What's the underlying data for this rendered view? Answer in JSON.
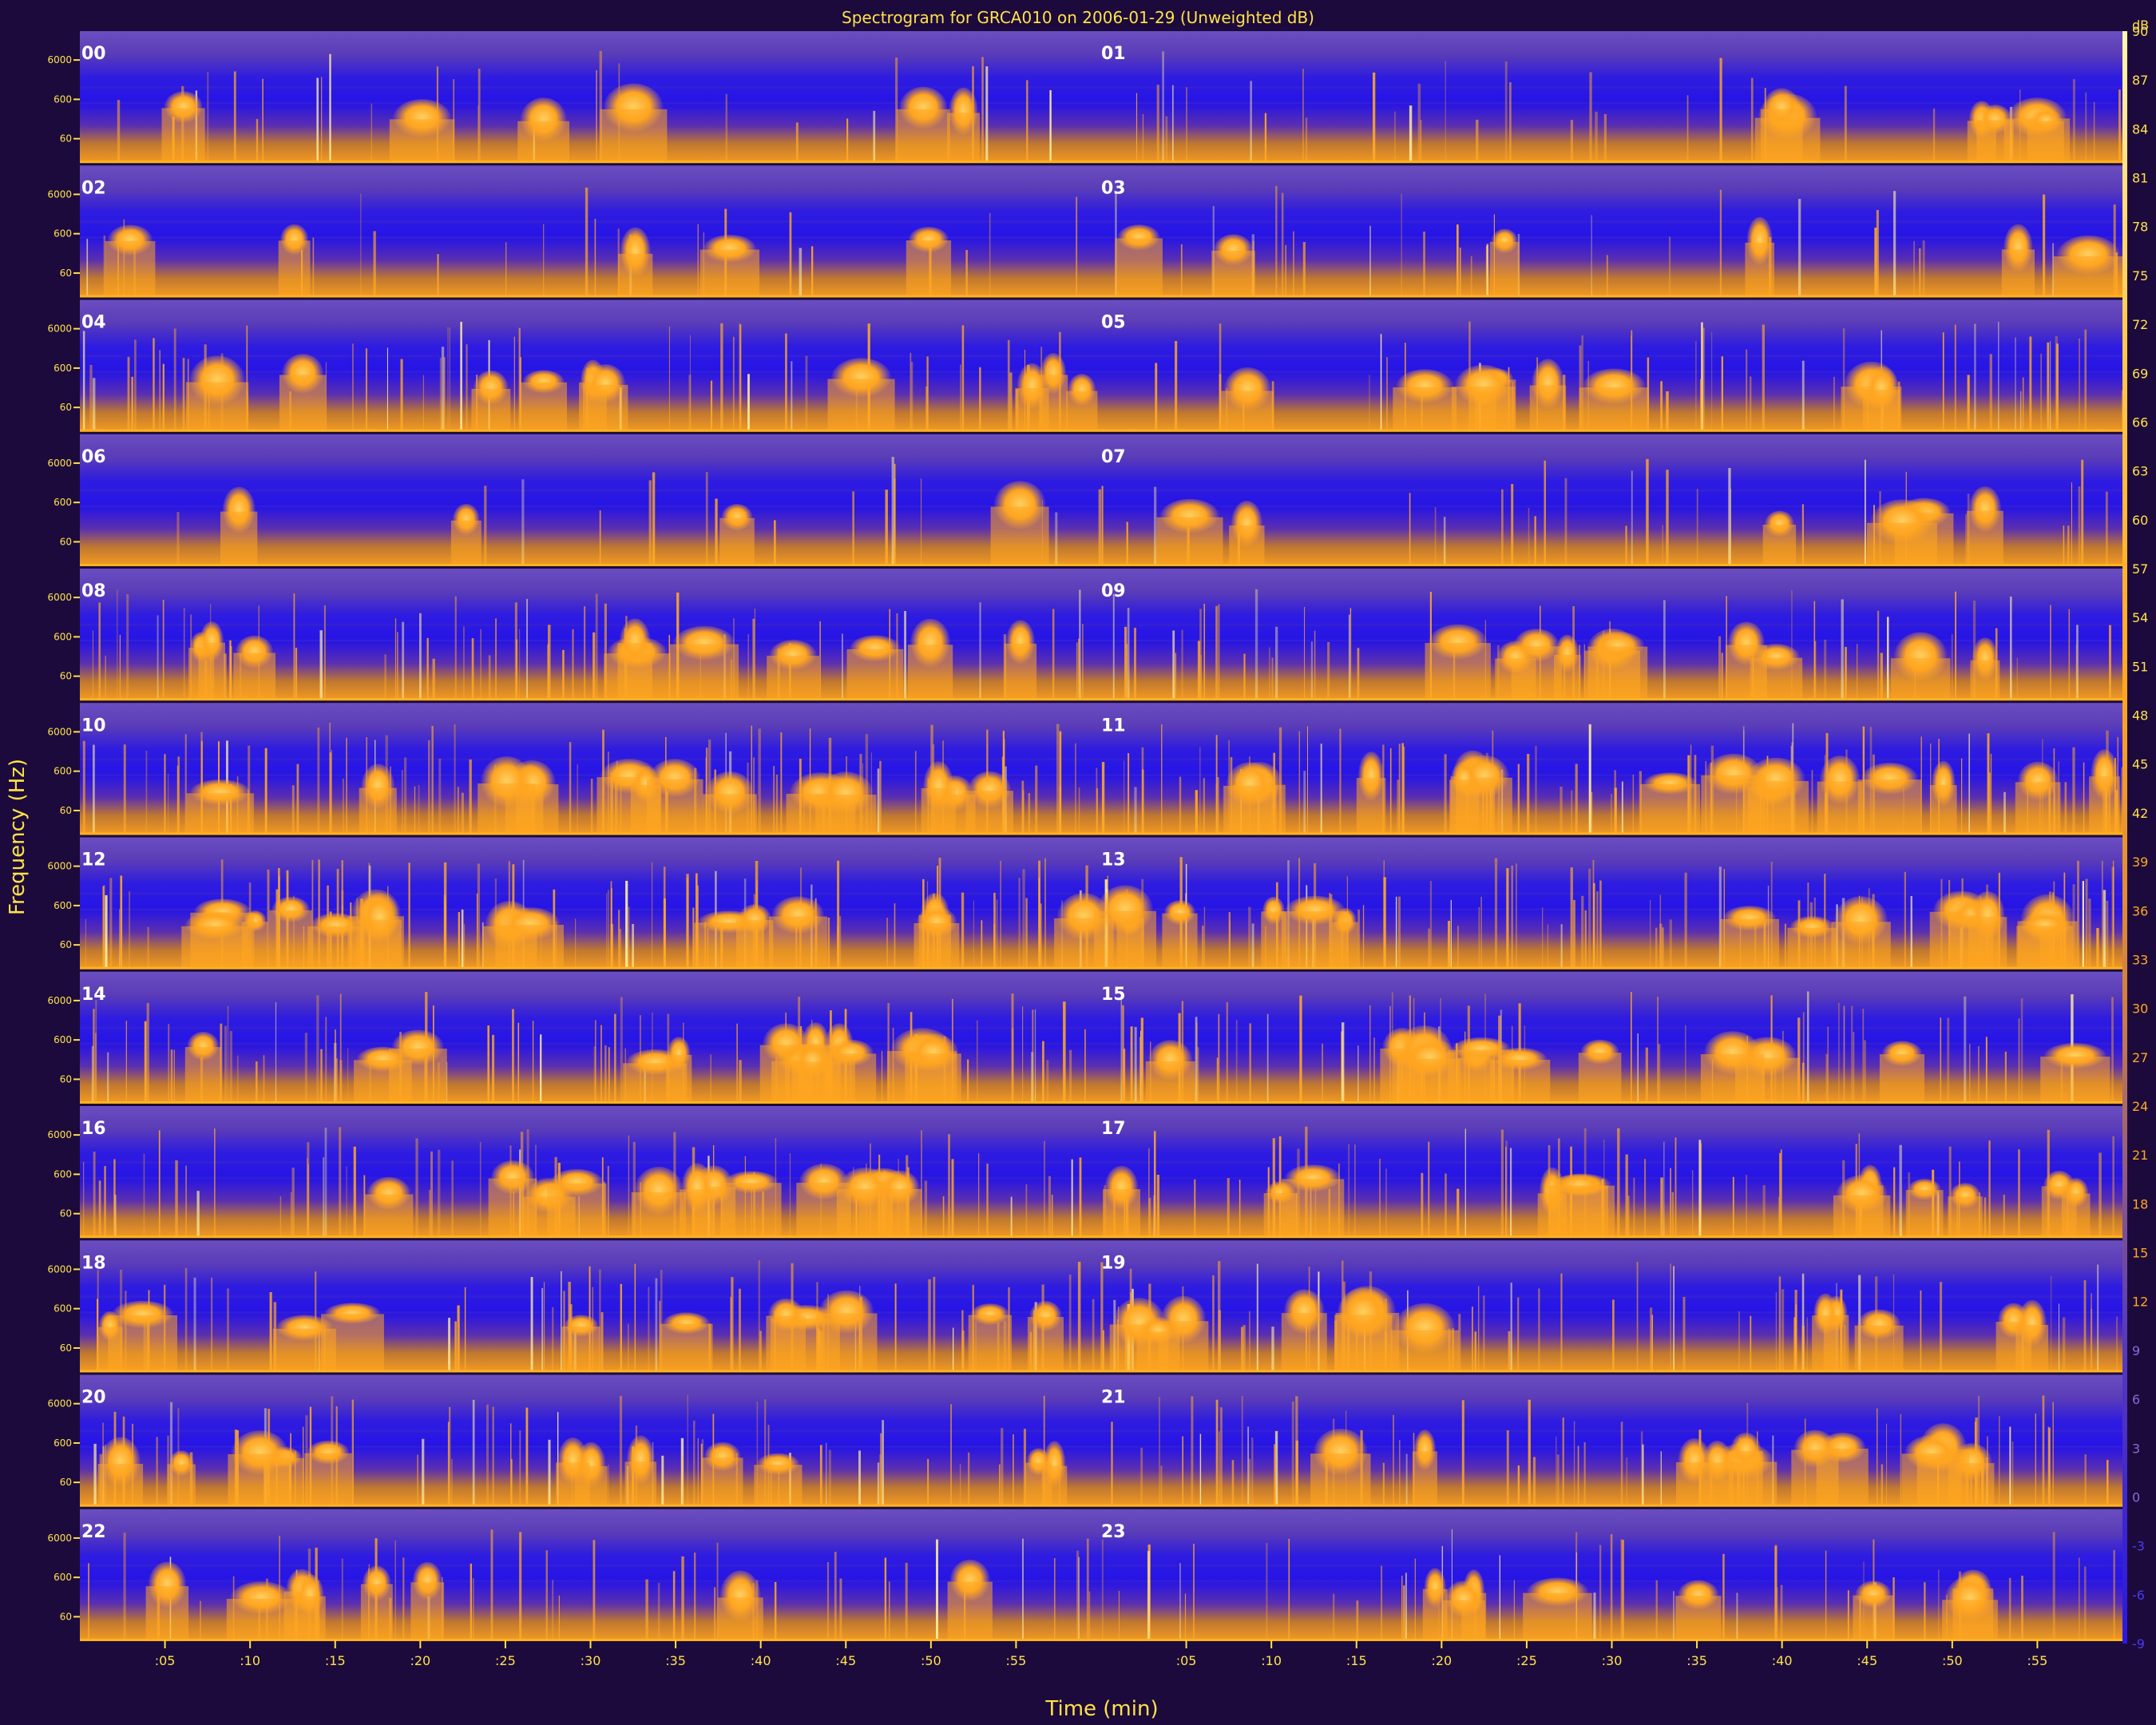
{
  "chart_data": {
    "type": "heatmap",
    "title": "Spectrogram for GRCA010 on 2006-01-29 (Unweighted dB)",
    "xlabel": "Time (min)",
    "ylabel": "Frequency (Hz)",
    "y_ticks": [
      "6000",
      "600",
      "60"
    ],
    "x_ticks": [
      ":05",
      ":10",
      ":15",
      ":20",
      ":25",
      ":30",
      ":35",
      ":40",
      ":45",
      ":50",
      ":55"
    ],
    "hours": [
      "00",
      "01",
      "02",
      "03",
      "04",
      "05",
      "06",
      "07",
      "08",
      "09",
      "10",
      "11",
      "12",
      "13",
      "14",
      "15",
      "16",
      "17",
      "18",
      "19",
      "20",
      "21",
      "22",
      "23"
    ],
    "colorbar": {
      "unit": "dB",
      "range": [
        -9,
        90
      ],
      "ticks": [
        "90",
        "87",
        "84",
        "81",
        "78",
        "75",
        "72",
        "69",
        "66",
        "63",
        "60",
        "57",
        "54",
        "51",
        "48",
        "45",
        "42",
        "39",
        "36",
        "33",
        "30",
        "27",
        "24",
        "21",
        "18",
        "15",
        "12",
        "9",
        "6",
        "3",
        "0",
        "-3",
        "-6",
        "-9"
      ]
    },
    "colors": {
      "background": "#1c0a3c",
      "panel_base": "#2a17dc",
      "low_level": "#5a3cb4",
      "high_level": "#ffaa1e",
      "peak_level": "#fff2a0",
      "text": "#ffe24a",
      "hour_label": "#ffffff"
    },
    "activity": [
      0.25,
      0.3,
      0.22,
      0.3,
      0.55,
      0.5,
      0.15,
      0.3,
      0.6,
      0.55,
      0.85,
      0.9,
      0.95,
      0.9,
      0.75,
      0.7,
      0.7,
      0.7,
      0.65,
      0.7,
      0.7,
      0.65,
      0.45,
      0.45
    ]
  }
}
